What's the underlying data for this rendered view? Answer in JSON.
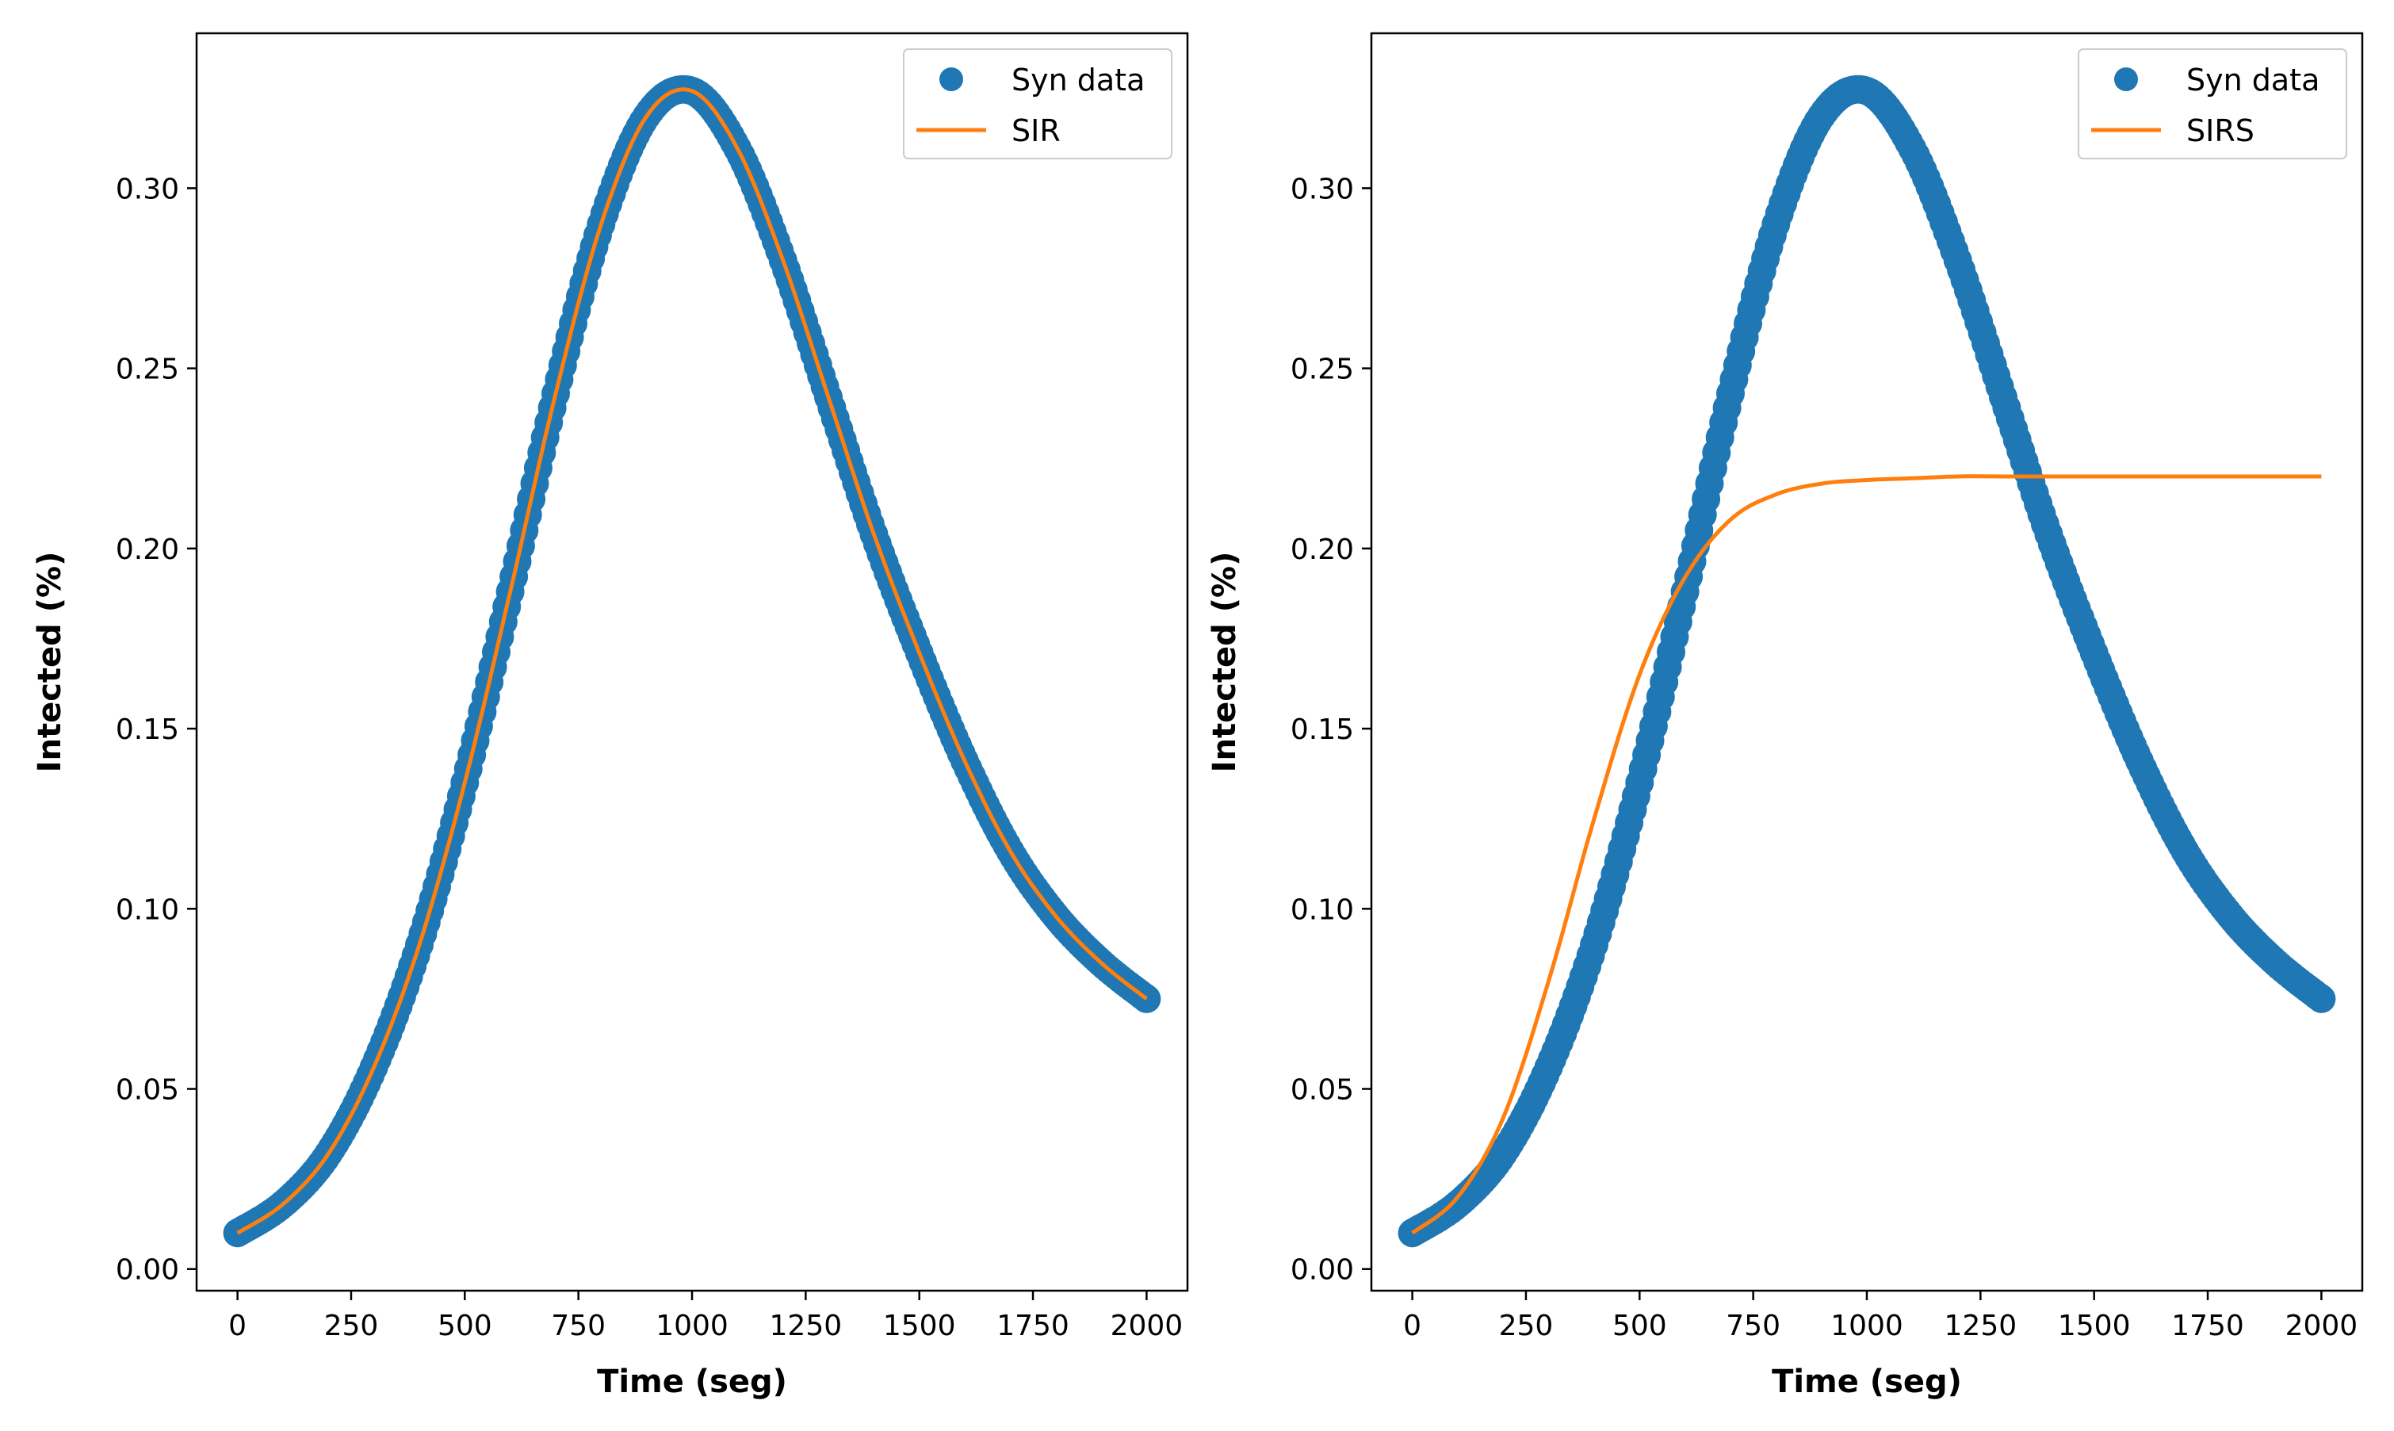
{
  "chart_data": [
    {
      "type": "line",
      "title": "",
      "xlabel": "Time (seg)",
      "ylabel": "Intected (%)",
      "xlim": [
        -90,
        2090
      ],
      "ylim": [
        -0.006,
        0.343
      ],
      "xticks": [
        0,
        250,
        500,
        750,
        1000,
        1250,
        1500,
        1750,
        2000
      ],
      "yticks": [
        0.0,
        0.05,
        0.1,
        0.15,
        0.2,
        0.25,
        0.3
      ],
      "ytick_labels": [
        "0.00",
        "0.05",
        "0.10",
        "0.15",
        "0.20",
        "0.25",
        "0.30"
      ],
      "legend_position": "top-right",
      "series": [
        {
          "name": "Syn data",
          "kind": "scatter",
          "color": "#1f77b4",
          "x": [
            0,
            100,
            200,
            300,
            400,
            500,
            600,
            700,
            800,
            900,
            1000,
            1100,
            1200,
            1300,
            1400,
            1500,
            1600,
            1700,
            1800,
            1900,
            2000
          ],
          "y": [
            0.01,
            0.018,
            0.032,
            0.056,
            0.09,
            0.135,
            0.188,
            0.243,
            0.29,
            0.32,
            0.327,
            0.311,
            0.28,
            0.242,
            0.204,
            0.171,
            0.141,
            0.116,
            0.098,
            0.085,
            0.075
          ]
        },
        {
          "name": "SIR",
          "kind": "line",
          "color": "#ff7f0e",
          "x": [
            0,
            100,
            200,
            300,
            400,
            500,
            600,
            700,
            800,
            900,
            1000,
            1100,
            1200,
            1300,
            1400,
            1500,
            1600,
            1700,
            1800,
            1900,
            2000
          ],
          "y": [
            0.01,
            0.018,
            0.032,
            0.056,
            0.09,
            0.135,
            0.188,
            0.243,
            0.29,
            0.32,
            0.327,
            0.311,
            0.28,
            0.242,
            0.204,
            0.171,
            0.141,
            0.116,
            0.098,
            0.085,
            0.075
          ]
        }
      ]
    },
    {
      "type": "line",
      "title": "",
      "xlabel": "Time (seg)",
      "ylabel": "Intected (%)",
      "xlim": [
        -90,
        2090
      ],
      "ylim": [
        -0.006,
        0.343
      ],
      "xticks": [
        0,
        250,
        500,
        750,
        1000,
        1250,
        1500,
        1750,
        2000
      ],
      "yticks": [
        0.0,
        0.05,
        0.1,
        0.15,
        0.2,
        0.25,
        0.3
      ],
      "ytick_labels": [
        "0.00",
        "0.05",
        "0.10",
        "0.15",
        "0.20",
        "0.25",
        "0.30"
      ],
      "legend_position": "top-right",
      "series": [
        {
          "name": "Syn data",
          "kind": "scatter",
          "color": "#1f77b4",
          "x": [
            0,
            100,
            200,
            300,
            400,
            500,
            600,
            700,
            800,
            900,
            1000,
            1100,
            1200,
            1300,
            1400,
            1500,
            1600,
            1700,
            1800,
            1900,
            2000
          ],
          "y": [
            0.01,
            0.018,
            0.032,
            0.056,
            0.09,
            0.135,
            0.188,
            0.243,
            0.29,
            0.32,
            0.327,
            0.311,
            0.28,
            0.242,
            0.204,
            0.171,
            0.141,
            0.116,
            0.098,
            0.085,
            0.075
          ]
        },
        {
          "name": "SIRS",
          "kind": "line",
          "color": "#ff7f0e",
          "x": [
            0,
            100,
            200,
            300,
            400,
            500,
            600,
            700,
            800,
            900,
            1000,
            1100,
            1200,
            1300,
            1400,
            1500,
            1600,
            1700,
            1800,
            1900,
            2000
          ],
          "y": [
            0.01,
            0.02,
            0.042,
            0.08,
            0.125,
            0.165,
            0.192,
            0.208,
            0.215,
            0.218,
            0.219,
            0.2195,
            0.22,
            0.22,
            0.22,
            0.22,
            0.22,
            0.22,
            0.22,
            0.22,
            0.22
          ]
        }
      ]
    }
  ]
}
